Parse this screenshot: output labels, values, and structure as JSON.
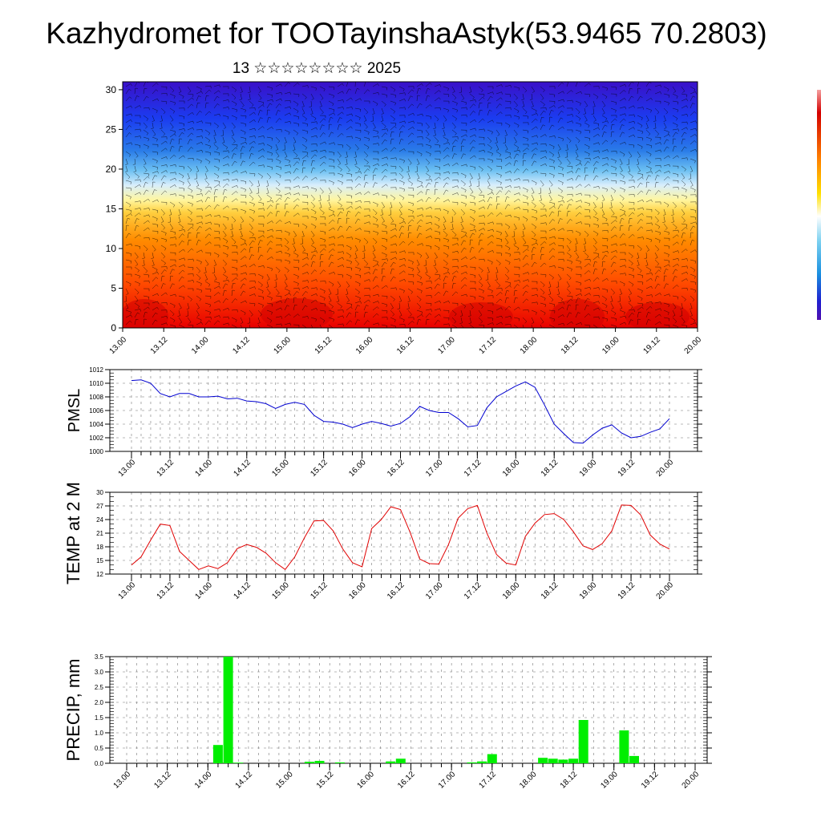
{
  "title": "Kazhydromet for TOOTayinshaAstyk(53.9465 70.2803)",
  "subtitle": "13 ☆☆☆☆☆☆☆☆ 2025",
  "x_ticks": [
    "13.00",
    "13.12",
    "14.00",
    "14.12",
    "15.00",
    "15.12",
    "16.00",
    "16.12",
    "17.00",
    "17.12",
    "18.00",
    "18.12",
    "19.00",
    "19.12",
    "20.00"
  ],
  "chart_data": [
    {
      "type": "heatmap",
      "panel": "cross-section",
      "x": [
        "13.00",
        "13.12",
        "14.00",
        "14.12",
        "15.00",
        "15.12",
        "16.00",
        "16.12",
        "17.00",
        "17.12",
        "18.00",
        "18.12",
        "19.00",
        "19.12",
        "20.00"
      ],
      "yticks": [
        0,
        5,
        10,
        15,
        20,
        25,
        30
      ],
      "ylim": [
        0,
        31
      ],
      "colormap": [
        "#e80000",
        "#ff6a00",
        "#ffd040",
        "#fff6a0",
        "#9ad4f6",
        "#2aa0ec",
        "#1b3cf0",
        "#3a10c8"
      ],
      "colorbar_colors": [
        "#f5a0a0",
        "#d40000",
        "#ff8000",
        "#ffe000",
        "#ffffff",
        "#7ad0f0",
        "#1a90e0",
        "#2020d0",
        "#5010b0"
      ],
      "overlay": "wind barbs"
    },
    {
      "type": "line",
      "ylabel": "PMSL",
      "ylim": [
        1000,
        1012
      ],
      "yticks": [
        1000,
        1002,
        1004,
        1006,
        1008,
        1010,
        1012
      ],
      "x_range": [
        0,
        7
      ],
      "series": [
        {
          "color": "#0000d0",
          "x": [
            0,
            0.125,
            0.25,
            0.375,
            0.5,
            0.625,
            0.75,
            0.875,
            1,
            1.125,
            1.25,
            1.375,
            1.5,
            1.625,
            1.75,
            1.875,
            2,
            2.125,
            2.25,
            2.375,
            2.5,
            2.625,
            2.75,
            2.875,
            3,
            3.125,
            3.25,
            3.375,
            3.5,
            3.625,
            3.75,
            3.875,
            4,
            4.125,
            4.25,
            4.375,
            4.5,
            4.625,
            4.75,
            4.875,
            5,
            5.125,
            5.25,
            5.375,
            5.5,
            5.625,
            5.75,
            5.875,
            6,
            6.125,
            6.25,
            6.375,
            6.5,
            6.625,
            6.75,
            6.875,
            7
          ],
          "values": [
            1010.4,
            1010.5,
            1010,
            1008.5,
            1008,
            1008.5,
            1008.5,
            1008,
            1008,
            1008.1,
            1007.7,
            1007.8,
            1007.4,
            1007.3,
            1007,
            1006.3,
            1006.9,
            1007.2,
            1006.9,
            1005.3,
            1004.4,
            1004.3,
            1004,
            1003.5,
            1004,
            1004.4,
            1004.1,
            1003.7,
            1004.1,
            1005.1,
            1006.6,
            1006,
            1005.7,
            1005.7,
            1004.8,
            1003.6,
            1003.8,
            1006.4,
            1008,
            1008.8,
            1009.6,
            1010.2,
            1009.4,
            1006.8,
            1004,
            1002.6,
            1001.3,
            1001.2,
            1002.4,
            1003.4,
            1003.9,
            1002.7,
            1002,
            1002.2,
            1002.8,
            1003.3,
            1004.8
          ]
        }
      ]
    },
    {
      "type": "line",
      "ylabel": "TEMP at 2 M",
      "ylim": [
        12,
        30
      ],
      "yticks": [
        12,
        15,
        18,
        21,
        24,
        27,
        30
      ],
      "x_range": [
        0,
        7
      ],
      "series": [
        {
          "color": "#e00000",
          "x": [
            0,
            0.125,
            0.25,
            0.375,
            0.5,
            0.625,
            0.75,
            0.875,
            1,
            1.125,
            1.25,
            1.375,
            1.5,
            1.625,
            1.75,
            1.875,
            2,
            2.125,
            2.25,
            2.375,
            2.5,
            2.625,
            2.75,
            2.875,
            3,
            3.125,
            3.25,
            3.375,
            3.5,
            3.625,
            3.75,
            3.875,
            4,
            4.125,
            4.25,
            4.375,
            4.5,
            4.625,
            4.75,
            4.875,
            5,
            5.125,
            5.25,
            5.375,
            5.5,
            5.625,
            5.75,
            5.875,
            6,
            6.125,
            6.25,
            6.375,
            6.5,
            6.625,
            6.75,
            6.875,
            7
          ],
          "values": [
            14,
            15.8,
            19.5,
            23,
            22.7,
            17,
            15,
            13,
            13.8,
            13.2,
            14.5,
            17.6,
            18.5,
            17.9,
            16.6,
            14.5,
            13,
            15.8,
            20,
            23.7,
            23.8,
            21.5,
            17.5,
            14.5,
            13.6,
            22,
            24,
            26.8,
            26.2,
            21.2,
            15.3,
            14.3,
            14.2,
            18.5,
            24.3,
            26.4,
            27.1,
            21,
            16.3,
            14.4,
            14,
            20.3,
            23.2,
            25.1,
            25.3,
            24,
            21.3,
            18.2,
            17.4,
            18.7,
            21.5,
            27.2,
            27.1,
            25,
            20.6,
            18.6,
            17.5
          ]
        }
      ]
    },
    {
      "type": "bar",
      "ylabel": "PRECIP, mm",
      "ylim": [
        0,
        3.5
      ],
      "yticks": [
        0.0,
        0.5,
        1.0,
        1.5,
        2.0,
        2.5,
        3.0,
        3.5
      ],
      "x_range": [
        0,
        7
      ],
      "bar_color": "#00ee00",
      "x": [
        1.125,
        1.25,
        1.375,
        2.25,
        2.375,
        2.625,
        3.25,
        3.375,
        4.25,
        4.375,
        4.5,
        5.125,
        5.25,
        5.375,
        5.5,
        5.625,
        6.125,
        6.25
      ],
      "values": [
        0.6,
        3.5,
        0.02,
        0.05,
        0.08,
        0.03,
        0.06,
        0.15,
        0.03,
        0.06,
        0.3,
        0.18,
        0.15,
        0.12,
        0.15,
        1.42,
        1.08,
        0.24
      ]
    }
  ]
}
